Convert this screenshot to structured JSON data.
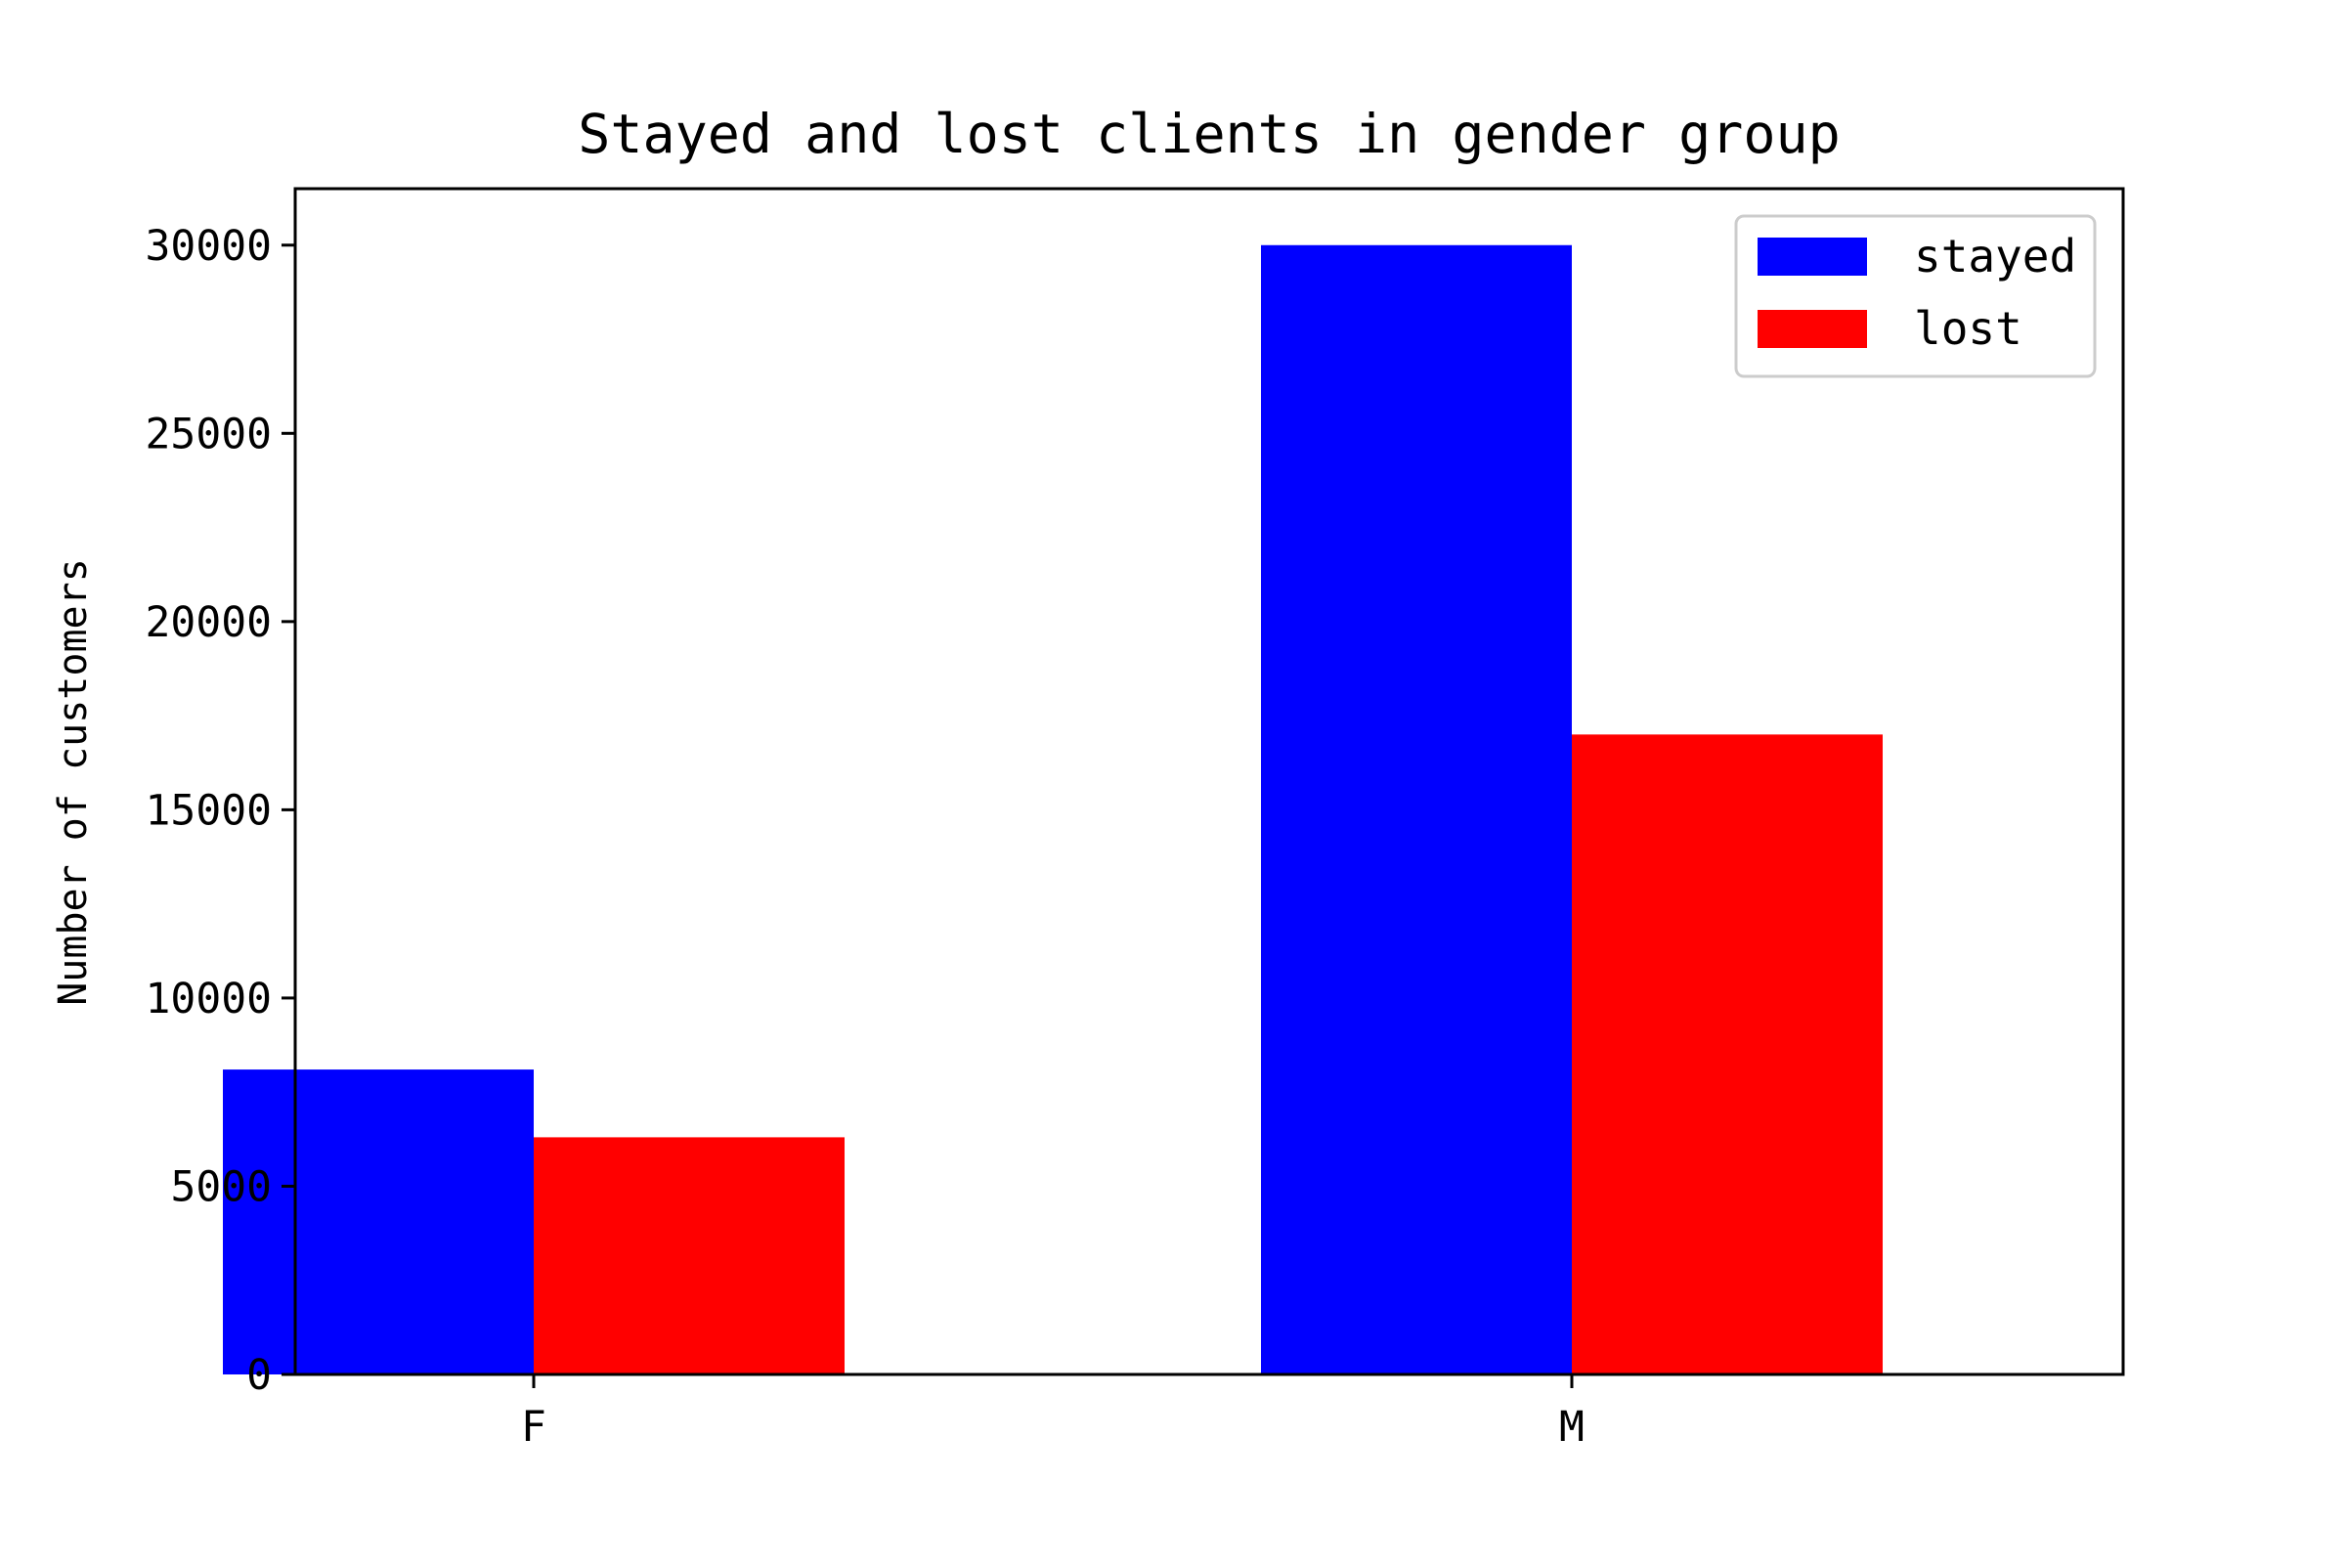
{
  "chart_data": {
    "type": "bar",
    "title": "Stayed and lost clients in gender group",
    "xlabel": "",
    "ylabel": "Number of customers",
    "categories": [
      "F",
      "M"
    ],
    "series": [
      {
        "name": "stayed",
        "values": [
          8100,
          30000
        ],
        "color": "#0000ff"
      },
      {
        "name": "lost",
        "values": [
          6300,
          17000
        ],
        "color": "#ff0000"
      }
    ],
    "ylim": [
      0,
      31500
    ],
    "yticks": [
      0,
      5000,
      10000,
      15000,
      20000,
      25000,
      30000
    ],
    "ytick_labels": [
      "0",
      "5000",
      "10000",
      "15000",
      "20000",
      "25000",
      "30000"
    ],
    "grid": false,
    "legend_position": "top-right"
  }
}
